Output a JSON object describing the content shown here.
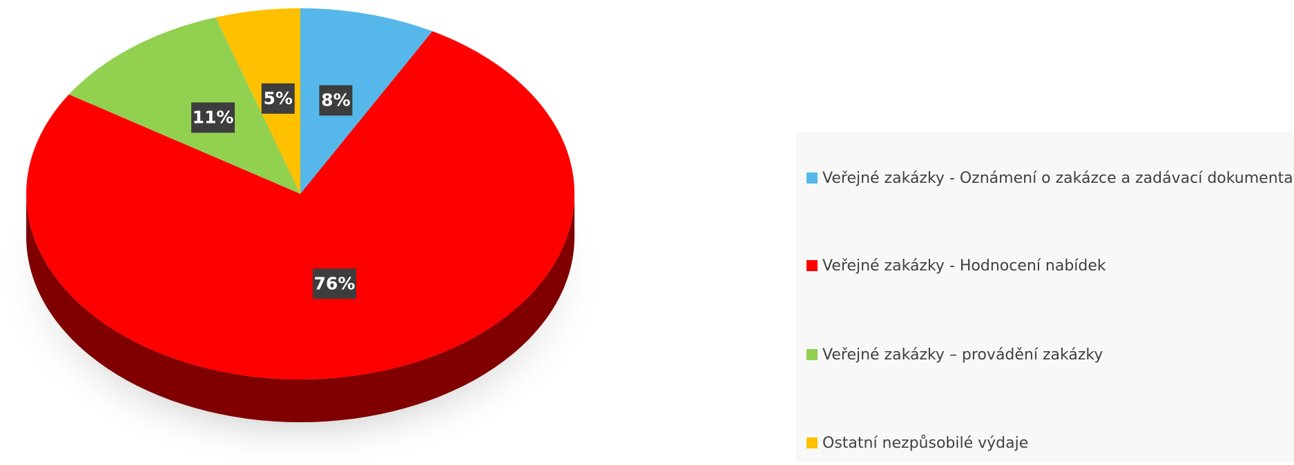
{
  "chart_data": {
    "type": "pie",
    "categories": [
      "Veřejné zakázky - Oznámení o zakázce a zadávací dokumentace",
      "Veřejné zakázky - Hodnocení nabídek",
      "Veřejné zakázky – provádění zakázky",
      "Ostatní nezpůsobilé výdaje"
    ],
    "values": [
      8,
      76,
      11,
      5
    ],
    "value_labels": [
      "8%",
      "76%",
      "11%",
      "5%"
    ],
    "colors": [
      "#56b8ea",
      "#ff0000",
      "#92d050",
      "#ffc000"
    ],
    "legend": "right"
  }
}
